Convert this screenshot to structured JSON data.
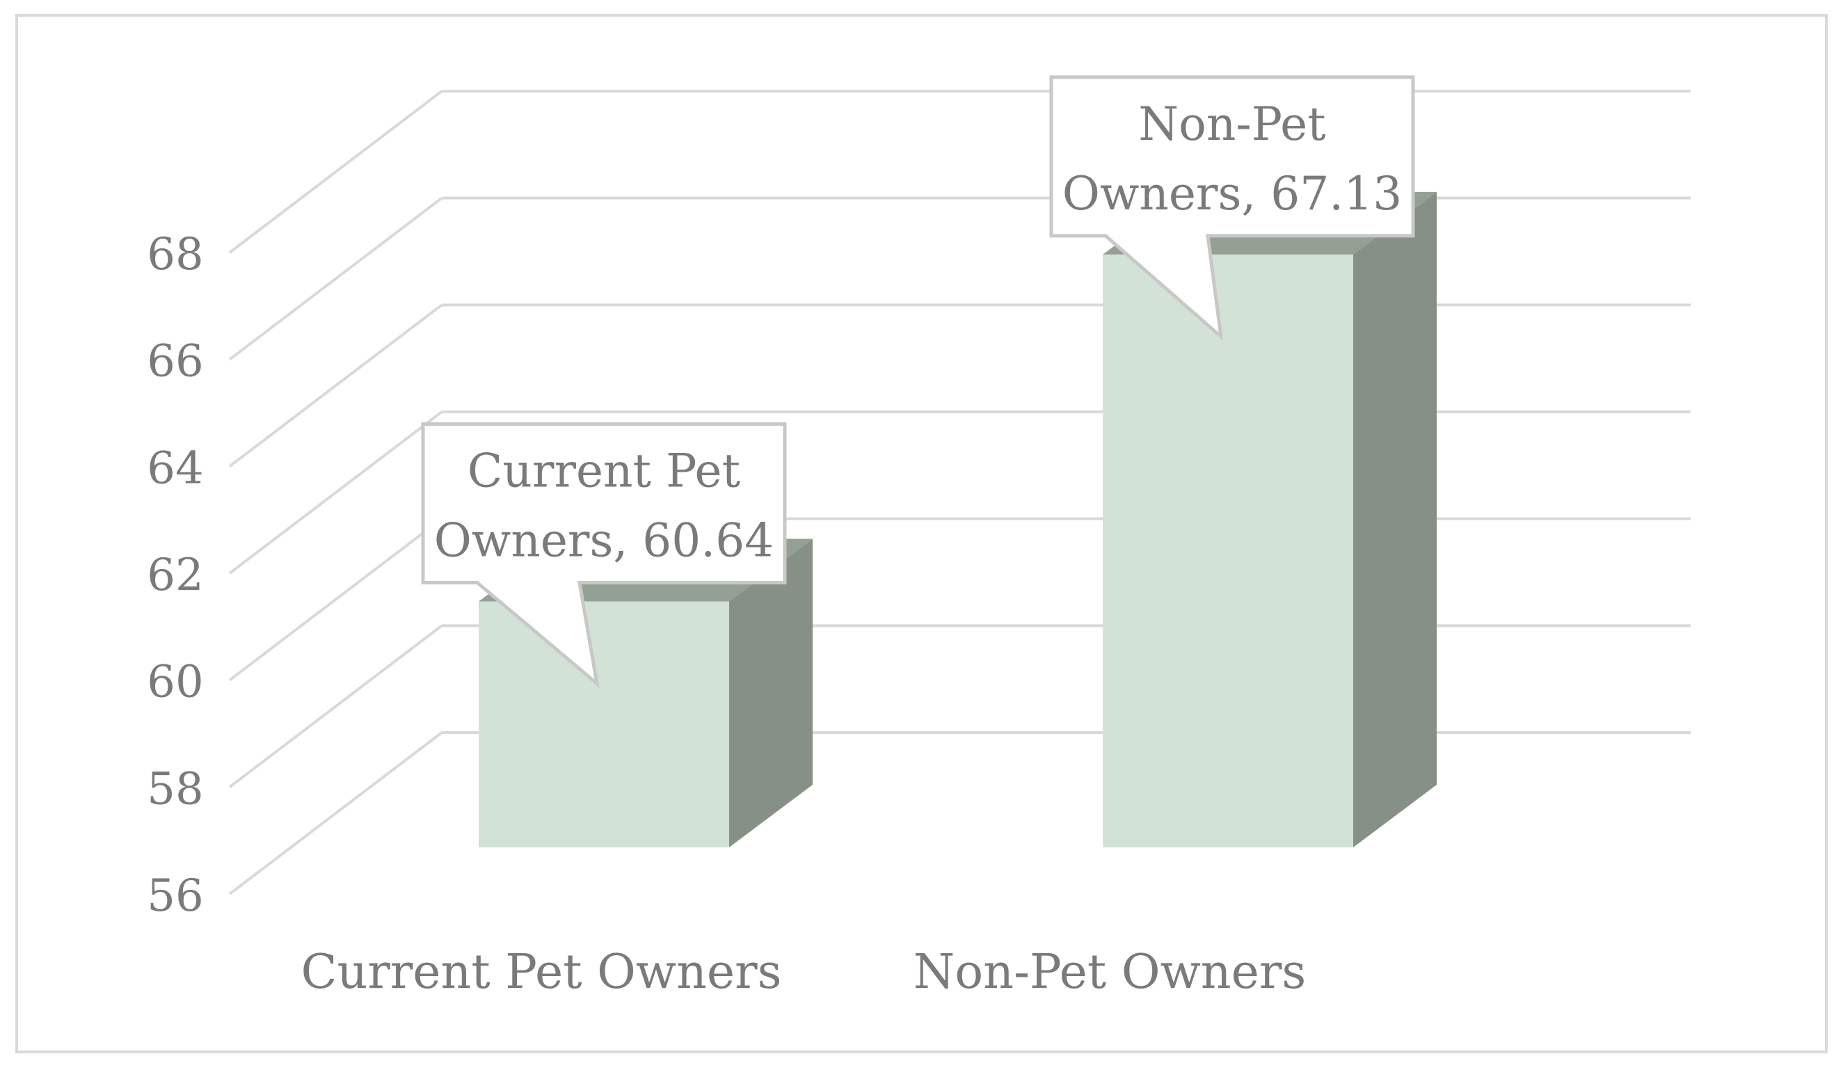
{
  "chart_data": {
    "type": "bar",
    "categories": [
      "Current Pet Owners",
      "Non-Pet Owners"
    ],
    "values": [
      60.64,
      67.13
    ],
    "title": "",
    "xlabel": "",
    "ylabel": "",
    "ylim": [
      56,
      68
    ],
    "ytick_values": [
      56,
      58,
      60,
      62,
      64,
      66,
      68
    ],
    "yticks": [
      "56",
      "58",
      "60",
      "62",
      "64",
      "66",
      "68"
    ],
    "data_labels": [
      [
        "Current Pet",
        "Owners, 60.64"
      ],
      [
        "Non-Pet",
        "Owners, 67.13"
      ]
    ],
    "grid": true,
    "style": "3d-column",
    "colors": {
      "bar_front": "#d3e2d6",
      "bar_side": "#879087",
      "bar_top": "#95a095",
      "gridline": "#d9d9d9",
      "text": "#7a7a7a",
      "callout_border": "#c8c8c8"
    }
  }
}
